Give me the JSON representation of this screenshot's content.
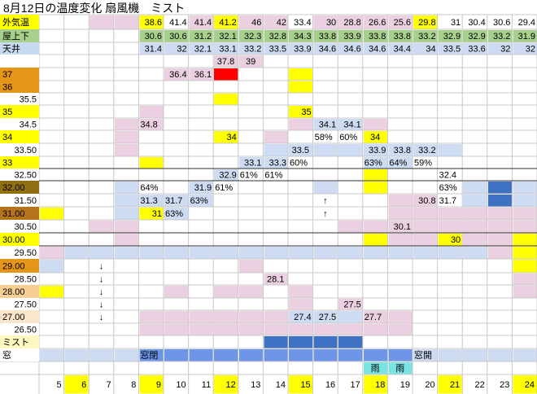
{
  "title": "8月12日の温度変化 扇風機　ミスト",
  "colors": {
    "yellow": "#ffff00",
    "red": "#ff0000",
    "pink": "#ebd0e1",
    "lightblue": "#cddcf3",
    "blue": "#6d95e8",
    "darkblue": "#4072c4",
    "cyan": "#7be3e3",
    "green": "#a8d08d",
    "labelblue": "#c6d9f0",
    "white": "#ffffff",
    "orange1": "#e59619",
    "orange2": "#f0b468",
    "orange3": "#f7cf94",
    "orange4": "#fbe5cb",
    "olive": "#8f6f12",
    "brown": "#b5731c",
    "paleyellow": "#fff7c0"
  },
  "chart_data": {
    "type": "table",
    "hours": [
      "5",
      "6",
      "7",
      "8",
      "9",
      "10",
      "11",
      "12",
      "13",
      "14",
      "15",
      "16",
      "17",
      "18",
      "19",
      "20",
      "21",
      "22",
      "23",
      "24"
    ],
    "highlight_hours": [
      "6",
      "9",
      "12",
      "15",
      "18",
      "21",
      "24"
    ],
    "top_rows": [
      {
        "label": "外気温",
        "label_color": "yellow",
        "values": [
          "",
          "",
          "",
          "",
          "38.6",
          "41.4",
          "41.4",
          "41.2",
          "46",
          "42",
          "33.4",
          "30",
          "28.8",
          "26.6",
          "25.6",
          "29.8",
          "31",
          "30.4",
          "30.6",
          "29.4"
        ]
      },
      {
        "label": "屋上下",
        "label_color": "green",
        "values": [
          "",
          "",
          "",
          "",
          "30.6",
          "30.6",
          "31.2",
          "32.1",
          "32.3",
          "32.8",
          "34.3",
          "33.8",
          "33.9",
          "33.8",
          "33.8",
          "33.2",
          "32.9",
          "32.9",
          "33.2",
          "31.9"
        ]
      },
      {
        "label": "天井",
        "label_color": "labelblue",
        "values": [
          "",
          "",
          "",
          "",
          "31.4",
          "32",
          "32.1",
          "33.1",
          "33.2",
          "33.5",
          "33.9",
          "34.6",
          "34.6",
          "34.6",
          "34.4",
          "34",
          "33.5",
          "33.6",
          "32",
          "32"
        ]
      }
    ],
    "temp_levels": [
      "",
      "37",
      "36",
      "35.5",
      "35",
      "34.5",
      "34",
      "33.50",
      "33",
      "32.50",
      "32.00",
      "31.50",
      "31.00",
      "30.50",
      "30.00",
      "29.50",
      "29.00",
      "28.50",
      "28.00",
      "27.50",
      "27.00",
      "26.50"
    ],
    "temp_level_colors": [
      "white",
      "orange1",
      "orange1",
      "white",
      "yellow",
      "white",
      "yellow",
      "white",
      "yellow",
      "white",
      "olive",
      "white",
      "brown",
      "white",
      "yellow",
      "white",
      "orange1",
      "white",
      "orange3",
      "white",
      "orange4",
      "white"
    ],
    "cell_texts": [
      {
        "row": 0,
        "col": 7,
        "text": "37.8",
        "align": "center"
      },
      {
        "row": 0,
        "col": 8,
        "text": "39",
        "align": "center"
      },
      {
        "row": 1,
        "col": 5,
        "text": "36.4",
        "align": "right"
      },
      {
        "row": 1,
        "col": 6,
        "text": "36.1",
        "align": "right"
      },
      {
        "row": 4,
        "col": 10,
        "text": "35",
        "align": "right"
      },
      {
        "row": 5,
        "col": 4,
        "text": "34.8",
        "align": "left"
      },
      {
        "row": 5,
        "col": 11,
        "text": "34.1",
        "align": "right"
      },
      {
        "row": 5,
        "col": 12,
        "text": "34.1",
        "align": "right"
      },
      {
        "row": 6,
        "col": 7,
        "text": "34",
        "align": "right"
      },
      {
        "row": 6,
        "col": 11,
        "text": "58%",
        "align": "left"
      },
      {
        "row": 6,
        "col": 12,
        "text": "60%",
        "align": "left"
      },
      {
        "row": 6,
        "col": 13,
        "text": "34",
        "align": "center"
      },
      {
        "row": 7,
        "col": 10,
        "text": "33.5",
        "align": "center"
      },
      {
        "row": 7,
        "col": 13,
        "text": "33.9",
        "align": "right"
      },
      {
        "row": 7,
        "col": 14,
        "text": "33.8",
        "align": "right"
      },
      {
        "row": 7,
        "col": 15,
        "text": "33.2",
        "align": "right"
      },
      {
        "row": 8,
        "col": 8,
        "text": "33.1",
        "align": "right"
      },
      {
        "row": 8,
        "col": 9,
        "text": "33.3",
        "align": "right"
      },
      {
        "row": 8,
        "col": 10,
        "text": "60%",
        "align": "left"
      },
      {
        "row": 8,
        "col": 13,
        "text": "63%",
        "align": "left"
      },
      {
        "row": 8,
        "col": 14,
        "text": "64%",
        "align": "left"
      },
      {
        "row": 8,
        "col": 15,
        "text": "59%",
        "align": "left"
      },
      {
        "row": 9,
        "col": 7,
        "text": "32.9",
        "align": "right"
      },
      {
        "row": 9,
        "col": 8,
        "text": "61%",
        "align": "left"
      },
      {
        "row": 9,
        "col": 9,
        "text": "61%",
        "align": "left"
      },
      {
        "row": 9,
        "col": 16,
        "text": "32.4",
        "align": "left"
      },
      {
        "row": 10,
        "col": 4,
        "text": "64%",
        "align": "left"
      },
      {
        "row": 10,
        "col": 6,
        "text": "31.9",
        "align": "right"
      },
      {
        "row": 10,
        "col": 7,
        "text": "61%",
        "align": "left"
      },
      {
        "row": 10,
        "col": 16,
        "text": "63%",
        "align": "left"
      },
      {
        "row": 11,
        "col": 4,
        "text": "31.3",
        "align": "left"
      },
      {
        "row": 11,
        "col": 5,
        "text": "31.7",
        "align": "left"
      },
      {
        "row": 11,
        "col": 6,
        "text": "63%",
        "align": "left"
      },
      {
        "row": 11,
        "col": 11,
        "text": "↑",
        "align": "center"
      },
      {
        "row": 11,
        "col": 15,
        "text": "30.8",
        "align": "right"
      },
      {
        "row": 11,
        "col": 16,
        "text": "31.7",
        "align": "left"
      },
      {
        "row": 12,
        "col": 4,
        "text": "31",
        "align": "right"
      },
      {
        "row": 12,
        "col": 5,
        "text": "63%",
        "align": "left"
      },
      {
        "row": 12,
        "col": 11,
        "text": "↑",
        "align": "center"
      },
      {
        "row": 13,
        "col": 14,
        "text": "30.1",
        "align": "right"
      },
      {
        "row": 14,
        "col": 16,
        "text": "30",
        "align": "right"
      },
      {
        "row": 16,
        "col": 2,
        "text": "↓",
        "align": "center"
      },
      {
        "row": 17,
        "col": 2,
        "text": "↓",
        "align": "center"
      },
      {
        "row": 17,
        "col": 9,
        "text": "28.1",
        "align": "center"
      },
      {
        "row": 18,
        "col": 2,
        "text": "↓",
        "align": "center"
      },
      {
        "row": 19,
        "col": 2,
        "text": "↓",
        "align": "center"
      },
      {
        "row": 19,
        "col": 12,
        "text": "27.5",
        "align": "right"
      },
      {
        "row": 20,
        "col": 2,
        "text": "↓",
        "align": "center"
      },
      {
        "row": 20,
        "col": 10,
        "text": "27.4",
        "align": "right"
      },
      {
        "row": 20,
        "col": 11,
        "text": "27.5",
        "align": "right"
      },
      {
        "row": 20,
        "col": 13,
        "text": "27.7",
        "align": "left"
      }
    ],
    "mist_label": "ミスト",
    "window_label": "窓",
    "window_closed": "窓閉",
    "window_open": "窓開",
    "rain": "雨"
  }
}
